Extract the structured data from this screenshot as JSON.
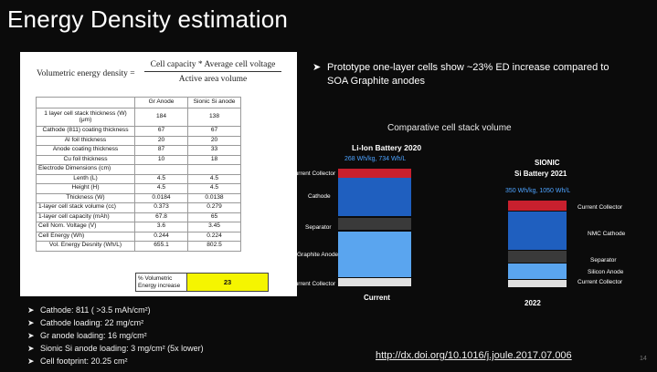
{
  "slide_title": "Energy Density estimation",
  "formula": {
    "lhs": "Volumetric energy density =",
    "numerator": "Cell capacity * Average cell voltage",
    "denominator": "Active area volume"
  },
  "table": {
    "headers": [
      "",
      "Gr Anode",
      "Sionic Si anode"
    ],
    "rows": [
      [
        "1 layer cell stack thickness (W) (μm)",
        "184",
        "138"
      ],
      [
        "Cathode (811) coating thickness",
        "67",
        "67"
      ],
      [
        "Al foil thickness",
        "20",
        "20"
      ],
      [
        "Anode coating thickness",
        "87",
        "33"
      ],
      [
        "Cu foil thickness",
        "10",
        "18"
      ],
      [
        "Electrode Dimensions (cm)",
        "",
        ""
      ],
      [
        "Lenth (L)",
        "4.5",
        "4.5"
      ],
      [
        "Height (H)",
        "4.5",
        "4.5"
      ],
      [
        "Thickness (W)",
        "0.0184",
        "0.0138"
      ],
      [
        "1-layer cell stack volume (cc)",
        "0.373",
        "0.279"
      ],
      [
        "1-layer cell capacity (mAh)",
        "67.8",
        "65"
      ],
      [
        "Cell Nom. Voltage (V)",
        "3.6",
        "3.45"
      ],
      [
        "Cell Energy (Wh)",
        "0.244",
        "0.224"
      ],
      [
        "Vol. Energy Desnity (Wh/L)",
        "655.1",
        "802.5"
      ]
    ],
    "pct_label": "% Volumetric Energy increase",
    "pct_value": "23"
  },
  "bullets": [
    "Cathode: 811 ( >3.5 mAh/cm²)",
    "Cathode loading: 22 mg/cm²",
    "Gr anode loading: 16 mg/cm²",
    "Sionic Si anode loading: 3 mg/cm² (5x lower)",
    "Cell footprint: 20.25 cm²"
  ],
  "right_bullet": "Prototype one-layer cells show ~23% ED increase compared to SOA Graphite anodes",
  "chart": {
    "title": "Comparative cell stack volume",
    "left_heading": "Li-Ion Battery 2020",
    "left_sub": "268 Wh/kg, 734 Wh/L",
    "right_heading_1": "SIONIC",
    "right_heading_2": "Si Battery 2021",
    "right_sub": "350 Wh/kg, 1050 Wh/L",
    "left_labels": [
      "Current Collector",
      "Cathode",
      "Separator",
      "Graphite Anode",
      "Current Collector"
    ],
    "right_labels": [
      "Current Collector",
      "NMC Cathode",
      "Separator",
      "Silicon Anode",
      "Current Collector"
    ],
    "x_labels": [
      "Current",
      "2022"
    ],
    "colors": {
      "collector": "#c8202e",
      "cathode": "#1f5fbf",
      "separator": "#3a3a3a",
      "anode": "#5aa5ef",
      "collector_bottom": "#e0e0e0"
    }
  },
  "url": "http://dx.doi.org/10.1016/j.joule.2017.07.006",
  "page_number": "14"
}
